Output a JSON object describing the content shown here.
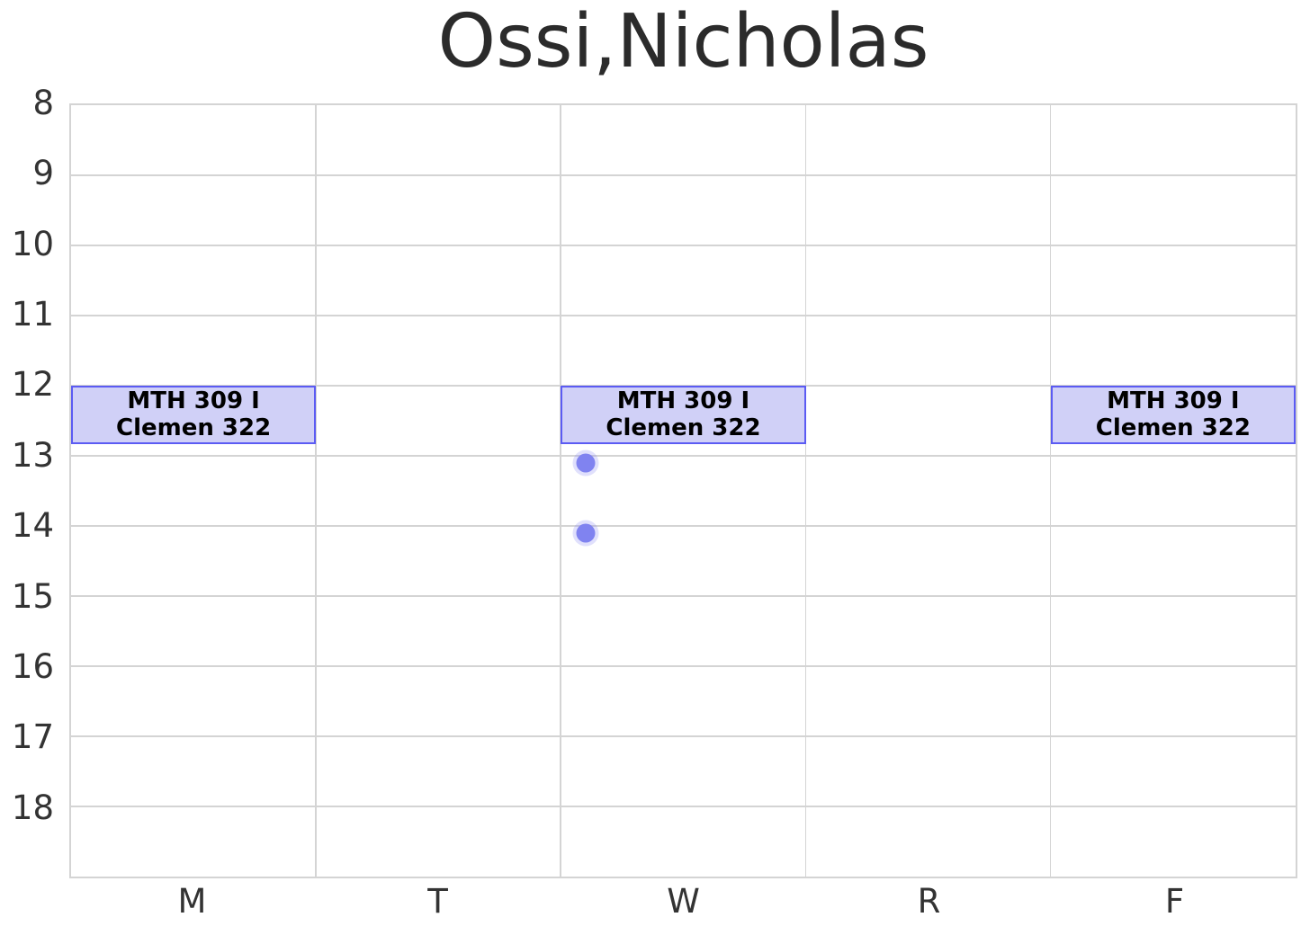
{
  "header": {
    "title": "Ossi,Nicholas"
  },
  "chart_data": {
    "type": "schedule",
    "title": "Ossi,Nicholas",
    "x_categories": [
      "M",
      "T",
      "W",
      "R",
      "F"
    ],
    "y_ticks": [
      "8",
      "9",
      "10",
      "11",
      "12",
      "13",
      "14",
      "15",
      "16",
      "17",
      "18"
    ],
    "y_range": [
      8,
      19
    ],
    "y_unit": "hour-of-day",
    "grid": true,
    "legend": false,
    "events": [
      {
        "day": "M",
        "day_index": 0,
        "start_hour": 12.0,
        "end_hour": 12.833,
        "course": "MTH 309 I",
        "room": "Clemen 322"
      },
      {
        "day": "W",
        "day_index": 2,
        "start_hour": 12.0,
        "end_hour": 12.833,
        "course": "MTH 309 I",
        "room": "Clemen 322"
      },
      {
        "day": "F",
        "day_index": 4,
        "start_hour": 12.0,
        "end_hour": 12.833,
        "course": "MTH 309 I",
        "room": "Clemen 322"
      }
    ],
    "points": [
      {
        "day": "W",
        "x_units": 2.1,
        "hour": 13.1
      },
      {
        "day": "W",
        "x_units": 2.1,
        "hour": 14.1
      }
    ],
    "colors": {
      "event_fill": "#d0d0f7",
      "event_border": "#5b5bf3",
      "event_text": "#000000",
      "point_fill": "#8083f0",
      "point_halo": "rgba(130,133,242,0.25)",
      "grid": "#d4d4d4",
      "tick_text": "#333333",
      "title_text": "#2b2b2b",
      "background": "#ffffff"
    }
  }
}
